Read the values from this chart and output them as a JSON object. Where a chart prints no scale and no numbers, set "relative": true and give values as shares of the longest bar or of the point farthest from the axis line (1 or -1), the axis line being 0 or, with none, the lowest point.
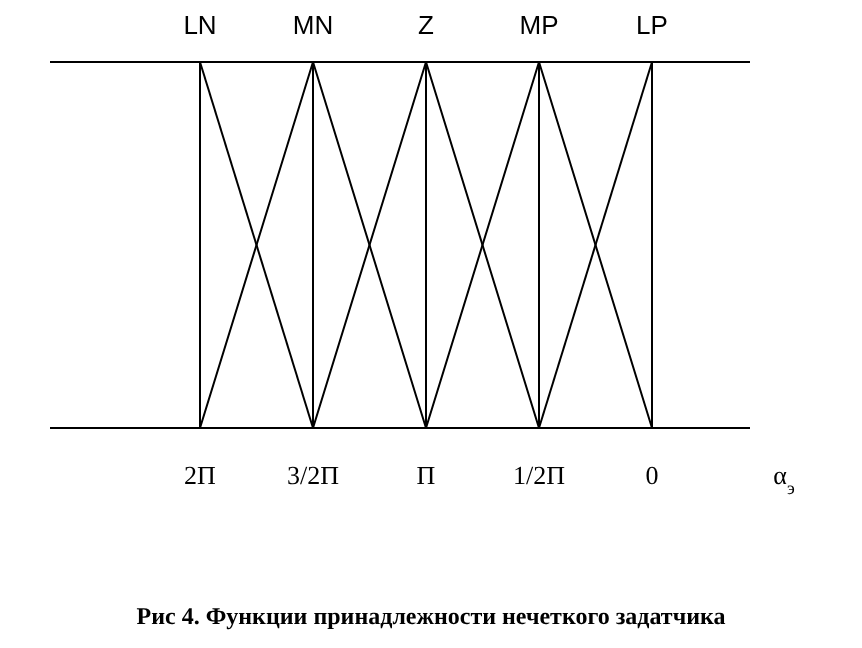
{
  "chart_data": {
    "type": "line",
    "title": "Рис 4. Функции принадлежности нечеткого задатчика",
    "xlabel": "α$_{э}$",
    "categories": [
      "2П",
      "3/2П",
      "П",
      "1/2П",
      "0"
    ],
    "relative": true,
    "grid": "x",
    "tick_labels": "x",
    "marker": "none",
    "line_style": "solid",
    "series": [
      {
        "name": "LN",
        "color": "#000000",
        "values": [
          1,
          0,
          null,
          null,
          null
        ]
      },
      {
        "name": "MN",
        "color": "#000000",
        "values": [
          0,
          1,
          0,
          null,
          null
        ]
      },
      {
        "name": "Z",
        "color": "#000000",
        "values": [
          null,
          0,
          1,
          0,
          null
        ]
      },
      {
        "name": "MP",
        "color": "#000000",
        "values": [
          null,
          null,
          0,
          1,
          0
        ]
      },
      {
        "name": "LP",
        "color": "#000000",
        "values": [
          null,
          null,
          null,
          0,
          1
        ]
      }
    ]
  }
}
